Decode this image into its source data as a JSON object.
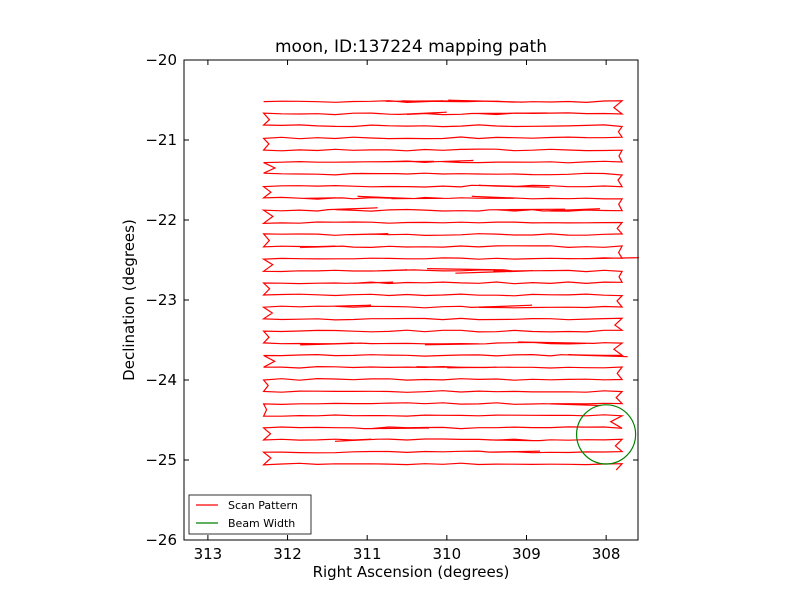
{
  "chart_data": {
    "type": "line",
    "title": "moon, ID:137224 mapping path",
    "xlabel": "Right Ascension (degrees)",
    "ylabel": "Declination (degrees)",
    "xlim": [
      313.3,
      307.6
    ],
    "ylim": [
      -26,
      -20
    ],
    "xticks": [
      313,
      312,
      311,
      310,
      309,
      308
    ],
    "xtick_labels": [
      "313",
      "312",
      "311",
      "310",
      "309",
      "308"
    ],
    "yticks": [
      -20,
      -21,
      -22,
      -23,
      -24,
      -25,
      -26
    ],
    "ytick_labels": [
      "−20",
      "−21",
      "−22",
      "−23",
      "−24",
      "−25",
      "−26"
    ],
    "grid": false,
    "legend_position": "lower-left",
    "series": [
      {
        "name": "Scan Pattern",
        "color": "#ff0000",
        "scan": {
          "ra_start": 312.3,
          "ra_end": 307.8,
          "dec_start": -20.52,
          "dec_end": -25.05,
          "dec_step": 0.151,
          "legs": 31
        }
      },
      {
        "name": "Beam Width",
        "color": "#008000",
        "circle": {
          "center_ra": 308.0,
          "center_dec": -24.68,
          "radius_deg": 0.37
        }
      }
    ]
  }
}
